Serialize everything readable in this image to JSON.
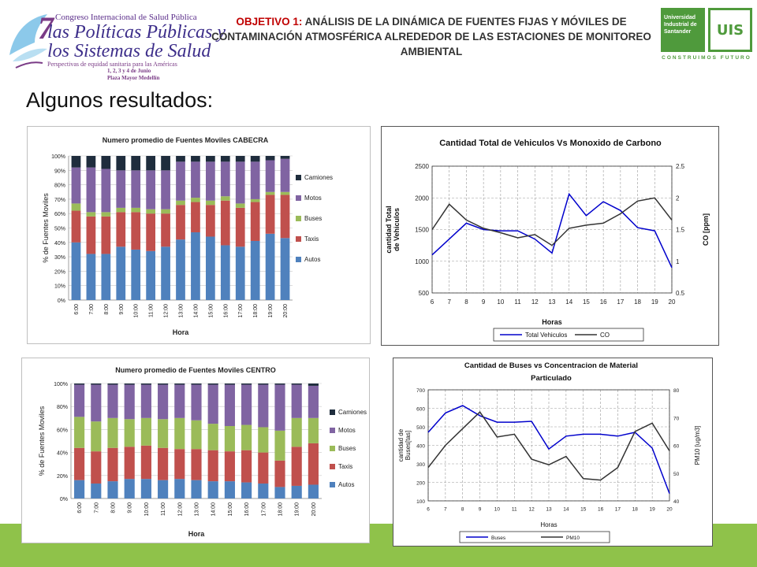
{
  "header": {
    "objective_label": "OBJETIVO 1:",
    "objective_text": "ANÁLISIS DE LA DINÁMICA DE FUENTES FIJAS Y MÓVILES DE CONTAMINACIÓN ATMOSFÉRICA ALREDEDOR DE LAS ESTACIONES DE MONITOREO AMBIENTAL"
  },
  "congress_logo": {
    "number": "7",
    "line1": "Congreso Internacional de Salud Pública",
    "line2": "las Políticas Públicas y",
    "line3": "los Sistemas de Salud",
    "line4": "Perspectivas de equidad sanitaria para las Américas",
    "line5": "1, 2, 3 y 4 de Junio",
    "line6": "Plaza Mayor Medellín"
  },
  "university_logo": {
    "name": "Universidad Industrial de Santander",
    "mark": "UIS",
    "motto": "CONSTRUIMOS FUTURO"
  },
  "subtitle": "Algunos resultados:",
  "chart_data": [
    {
      "type": "bar",
      "stacked": true,
      "percent": true,
      "title": "Numero promedio de Fuentes Moviles CABECRA",
      "xlabel": "Hora",
      "ylabel": "% de Fuentes Moviles",
      "ylim": [
        0,
        100
      ],
      "yticks": [
        "0%",
        "10%",
        "20%",
        "30%",
        "40%",
        "50%",
        "60%",
        "70%",
        "80%",
        "90%",
        "100%"
      ],
      "categories": [
        "6:00",
        "7:00",
        "8:00",
        "9:00",
        "10:00",
        "11:00",
        "12:00",
        "13:00",
        "14:00",
        "15:00",
        "16:00",
        "17:00",
        "18:00",
        "19:00",
        "20:00"
      ],
      "series": [
        {
          "name": "Autos",
          "color": "#4f81bd",
          "values": [
            40,
            32,
            32,
            37,
            35,
            34,
            37,
            42,
            47,
            44,
            38,
            37,
            41,
            46,
            43
          ]
        },
        {
          "name": "Taxis",
          "color": "#c0504d",
          "values": [
            22,
            26,
            26,
            24,
            26,
            26,
            23,
            24,
            21,
            22,
            31,
            27,
            27,
            27,
            30
          ]
        },
        {
          "name": "Buses",
          "color": "#9bbb59",
          "values": [
            5,
            3,
            3,
            3,
            3,
            3,
            3,
            3,
            3,
            3,
            3,
            3,
            2,
            2,
            2
          ]
        },
        {
          "name": "Motos",
          "color": "#8064a2",
          "values": [
            25,
            31,
            30,
            26,
            26,
            27,
            27,
            27,
            25,
            27,
            24,
            29,
            26,
            22,
            23
          ]
        },
        {
          "name": "Camiones",
          "color": "#1f2d3d",
          "values": [
            8,
            8,
            9,
            10,
            10,
            10,
            10,
            4,
            4,
            4,
            4,
            4,
            4,
            3,
            2
          ]
        }
      ],
      "legend": "right"
    },
    {
      "type": "line",
      "title": "Cantidad Total de Vehiculos Vs Monoxido de Carbono",
      "xlabel": "Horas",
      "ylabel": "cantidad Total de Vehiculos",
      "y2label": "CO [ppm]",
      "x": [
        6,
        7,
        8,
        9,
        10,
        11,
        12,
        13,
        14,
        15,
        16,
        17,
        18,
        19,
        20
      ],
      "ylim": [
        500,
        2500
      ],
      "yticks": [
        500,
        1000,
        1500,
        2000,
        2500
      ],
      "y2lim": [
        0.5,
        2.5
      ],
      "y2ticks": [
        0.5,
        1,
        1.5,
        2,
        2.5
      ],
      "series": [
        {
          "name": "Total Vehiculos",
          "axis": "left",
          "color": "#0000cc",
          "values": [
            1100,
            1350,
            1600,
            1500,
            1480,
            1480,
            1350,
            1130,
            2060,
            1720,
            1940,
            1800,
            1530,
            1480,
            900
          ]
        },
        {
          "name": "CO",
          "axis": "right",
          "color": "#333333",
          "values": [
            1.5,
            1.9,
            1.65,
            1.52,
            1.45,
            1.37,
            1.42,
            1.25,
            1.52,
            1.57,
            1.6,
            1.75,
            1.95,
            2.0,
            1.65
          ]
        }
      ],
      "legend": "bottom"
    },
    {
      "type": "bar",
      "stacked": true,
      "percent": true,
      "title": "Numero promedio de Fuentes Moviles CENTRO",
      "xlabel": "Hora",
      "ylabel": "% de Fuentes Moviles",
      "ylim": [
        0,
        100
      ],
      "yticks": [
        "0%",
        "20%",
        "40%",
        "60%",
        "80%",
        "100%"
      ],
      "categories": [
        "6:00",
        "7:00",
        "8:00",
        "9:00",
        "10:00",
        "11:00",
        "12:00",
        "13:00",
        "14:00",
        "15:00",
        "16:00",
        "17:00",
        "18:00",
        "19:00",
        "20:00"
      ],
      "series": [
        {
          "name": "Autos",
          "color": "#4f81bd",
          "values": [
            16,
            13,
            15,
            17,
            17,
            16,
            17,
            16,
            15,
            15,
            14,
            13,
            10,
            11,
            12
          ]
        },
        {
          "name": "Taxis",
          "color": "#c0504d",
          "values": [
            28,
            28,
            29,
            28,
            29,
            28,
            26,
            27,
            27,
            26,
            28,
            27,
            23,
            34,
            36
          ]
        },
        {
          "name": "Buses",
          "color": "#9bbb59",
          "values": [
            27,
            26,
            26,
            24,
            24,
            25,
            27,
            25,
            23,
            22,
            22,
            22,
            26,
            25,
            22
          ]
        },
        {
          "name": "Motos",
          "color": "#8064a2",
          "values": [
            28,
            32,
            29,
            30,
            29,
            30,
            29,
            31,
            34,
            36,
            35,
            37,
            40,
            29,
            28
          ]
        },
        {
          "name": "Camiones",
          "color": "#1f2d3d",
          "values": [
            1,
            1,
            1,
            1,
            1,
            1,
            1,
            1,
            1,
            1,
            1,
            1,
            1,
            1,
            2
          ]
        }
      ],
      "legend": "right"
    },
    {
      "type": "line",
      "title": "Cantidad de Buses vs Concentracion de Material Particulado",
      "xlabel": "Horas",
      "ylabel": "cantidad de Buses[tas]",
      "y2label": "PM10 [ug/m3]",
      "x": [
        6,
        7,
        8,
        9,
        10,
        11,
        12,
        13,
        14,
        15,
        16,
        17,
        18,
        19,
        20
      ],
      "ylim": [
        100,
        700
      ],
      "yticks": [
        100,
        200,
        300,
        400,
        500,
        600,
        700
      ],
      "y2lim": [
        40,
        80
      ],
      "y2ticks": [
        40,
        50,
        60,
        70,
        80
      ],
      "series": [
        {
          "name": "Buses",
          "axis": "left",
          "color": "#0000cc",
          "values": [
            470,
            575,
            615,
            560,
            525,
            525,
            530,
            380,
            450,
            460,
            460,
            450,
            470,
            385,
            140
          ]
        },
        {
          "name": "PM10",
          "axis": "right",
          "color": "#333333",
          "values": [
            52,
            60,
            66,
            72,
            63,
            64,
            55,
            53,
            56,
            48,
            47.5,
            52,
            65,
            68,
            58
          ]
        }
      ],
      "legend": "bottom"
    }
  ]
}
